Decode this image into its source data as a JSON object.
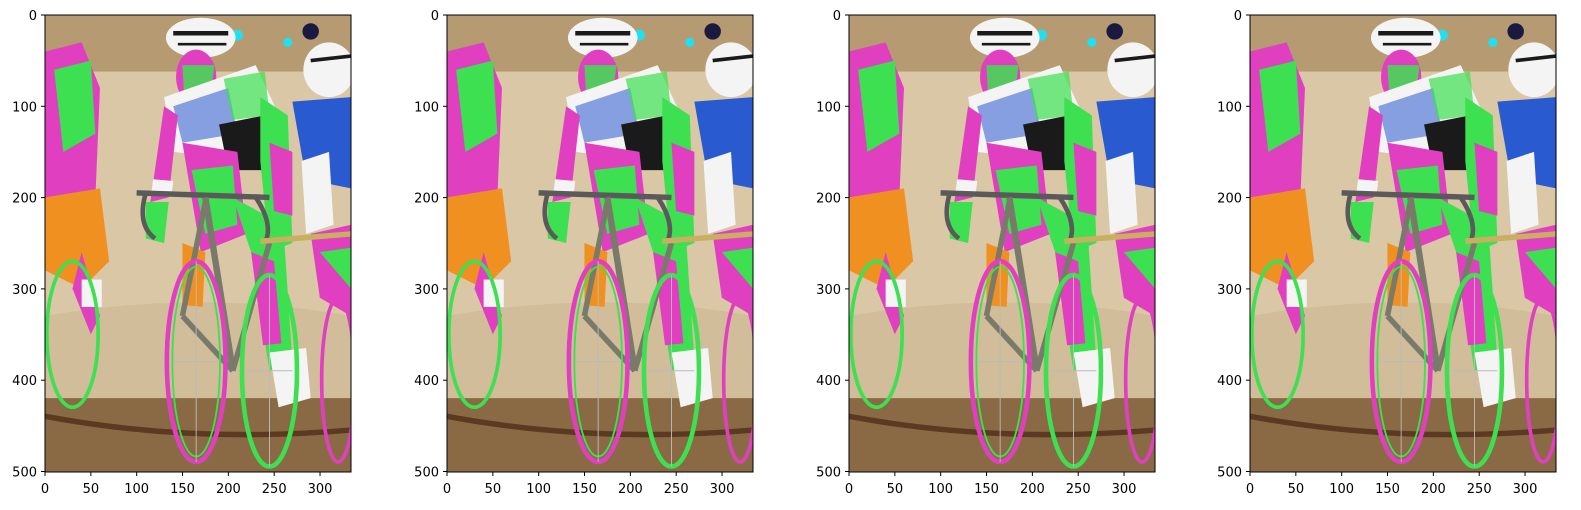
{
  "figure": {
    "panel_count": 4,
    "image_description": "track cyclists racing, psychedelic false-color rendering"
  },
  "panels": [
    {
      "x_ticks": [
        "0",
        "50",
        "100",
        "150",
        "200",
        "250",
        "300"
      ],
      "y_ticks": [
        "0",
        "100",
        "200",
        "300",
        "400",
        "500"
      ]
    },
    {
      "x_ticks": [
        "0",
        "50",
        "100",
        "150",
        "200",
        "250",
        "300"
      ],
      "y_ticks": [
        "0",
        "100",
        "200",
        "300",
        "400",
        "500"
      ]
    },
    {
      "x_ticks": [
        "0",
        "50",
        "100",
        "150",
        "200",
        "250",
        "300"
      ],
      "y_ticks": [
        "0",
        "100",
        "200",
        "300",
        "400",
        "500"
      ]
    },
    {
      "x_ticks": [
        "0",
        "50",
        "100",
        "150",
        "200",
        "250",
        "300"
      ],
      "y_ticks": [
        "0",
        "100",
        "200",
        "300",
        "400",
        "500"
      ]
    }
  ],
  "colors": {
    "background_light": "#d8c8a8",
    "track_brown": "#8a6a44",
    "magenta": "#e040c0",
    "green": "#3ce050",
    "orange": "#f09020",
    "blue_jersey": "#2a5ad0",
    "white": "#f4f4f4",
    "black": "#1a1a1a"
  }
}
